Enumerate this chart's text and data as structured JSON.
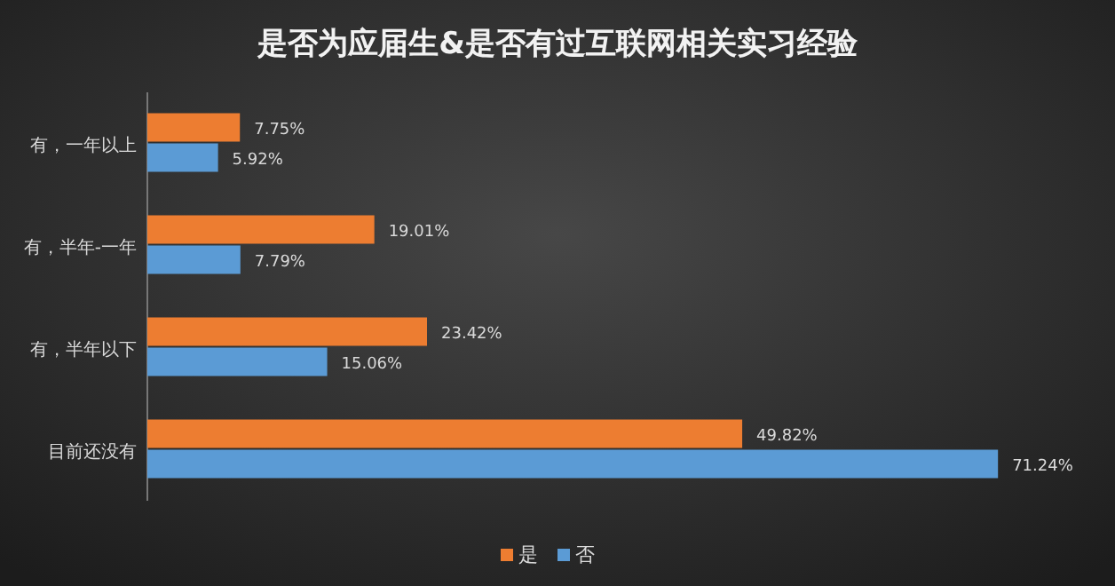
{
  "chart_data": {
    "type": "bar",
    "orientation": "horizontal",
    "title": "是否为应届生&是否有过互联网相关实习经验",
    "categories": [
      "有，一年以上",
      "有，半年-一年",
      "有，半年以下",
      "目前还没有"
    ],
    "series": [
      {
        "name": "是",
        "color": "#ed7d31",
        "values": [
          7.75,
          19.01,
          23.42,
          49.82
        ],
        "value_labels": [
          "7.75%",
          "19.01%",
          "23.42%",
          "49.82%"
        ]
      },
      {
        "name": "否",
        "color": "#5b9bd5",
        "values": [
          5.92,
          7.79,
          15.06,
          71.24
        ],
        "value_labels": [
          "5.92%",
          "7.79%",
          "15.06%",
          "71.24%"
        ]
      }
    ],
    "legend": "bottom"
  }
}
